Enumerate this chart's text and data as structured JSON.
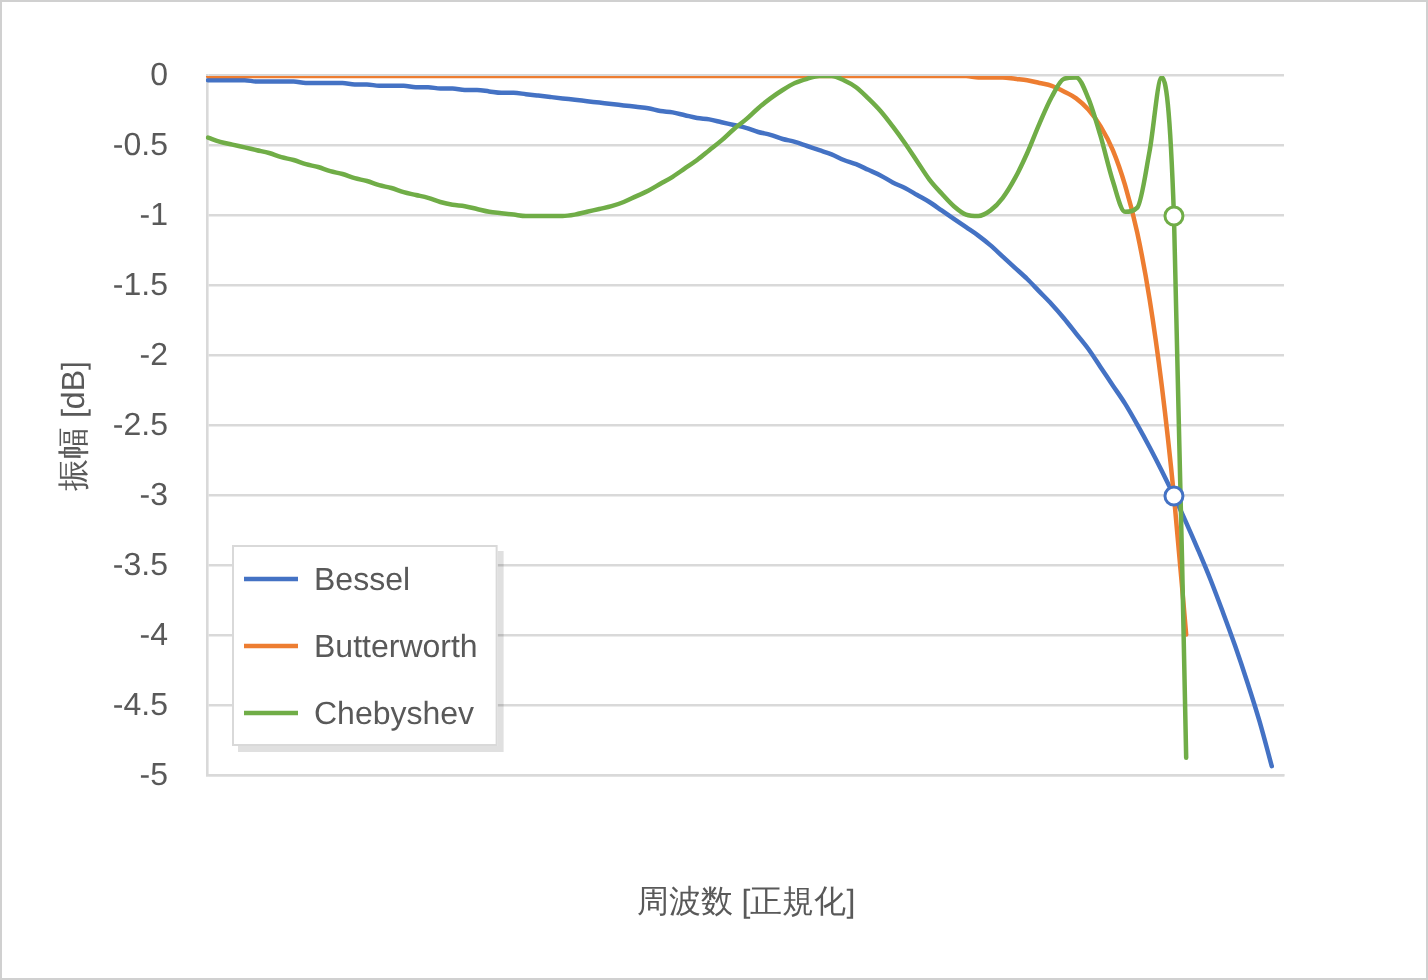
{
  "chart_data": {
    "type": "line",
    "xlabel": "周波数 [正規化]",
    "ylabel": "振幅 [dB]",
    "categories": [
      null,
      null,
      null,
      null,
      null,
      null,
      null,
      null,
      null,
      null,
      null,
      null,
      null,
      null,
      null,
      null,
      null,
      null,
      null,
      null,
      null,
      null,
      null,
      null,
      null,
      null,
      null,
      null,
      null,
      null,
      null,
      null,
      null,
      null,
      null,
      null,
      null,
      null,
      null,
      null,
      null,
      null,
      null,
      null,
      null,
      null,
      null,
      null,
      null,
      null,
      null,
      null,
      null,
      null,
      null,
      null,
      null,
      null,
      null,
      null,
      null,
      null,
      null,
      null,
      null,
      null,
      null,
      null,
      null,
      null,
      null,
      null,
      null,
      null,
      null,
      null,
      null,
      null,
      null,
      null,
      null,
      null,
      null,
      null,
      null,
      null,
      null,
      null,
      null
    ],
    "ylim": [
      -5,
      0
    ],
    "yticks": [
      -5,
      -4.5,
      -4,
      -3.5,
      -3,
      -2.5,
      -2,
      -1.5,
      -1,
      -0.5,
      0
    ],
    "tick_labels": "y",
    "grid": "y",
    "legend": "bottom left",
    "series": [
      {
        "name": "Bessel",
        "color": "#4472c4",
        "values": [
          -0.03,
          -0.03,
          -0.03,
          -0.03,
          -0.04,
          -0.04,
          -0.04,
          -0.04,
          -0.05,
          -0.05,
          -0.05,
          -0.05,
          -0.06,
          -0.06,
          -0.07,
          -0.07,
          -0.07,
          -0.08,
          -0.08,
          -0.09,
          -0.09,
          -0.1,
          -0.1,
          -0.11,
          -0.12,
          -0.12,
          -0.13,
          -0.14,
          -0.15,
          -0.16,
          -0.17,
          -0.18,
          -0.19,
          -0.2,
          -0.21,
          -0.22,
          -0.23,
          -0.25,
          -0.26,
          -0.28,
          -0.3,
          -0.31,
          -0.33,
          -0.35,
          -0.37,
          -0.4,
          -0.42,
          -0.45,
          -0.47,
          -0.5,
          -0.53,
          -0.56,
          -0.6,
          -0.63,
          -0.67,
          -0.71,
          -0.76,
          -0.8,
          -0.85,
          -0.9,
          -0.96,
          -1.02,
          -1.08,
          -1.14,
          -1.21,
          -1.29,
          -1.37,
          -1.45,
          -1.54,
          -1.63,
          -1.73,
          -1.84,
          -1.95,
          -2.08,
          -2.21,
          -2.34,
          -2.49,
          -2.65,
          -2.82,
          -3.0,
          -3.19,
          -3.39,
          -3.6,
          -3.83,
          -4.07,
          -4.33,
          -4.61,
          -4.93,
          null
        ]
      },
      {
        "name": "Butterworth",
        "color": "#ed7d31",
        "values": [
          0,
          0,
          0,
          0,
          0,
          0,
          0,
          0,
          0,
          0,
          0,
          0,
          0,
          0,
          0,
          0,
          0,
          0,
          0,
          0,
          0,
          0,
          0,
          0,
          0,
          0,
          0,
          0,
          0,
          0,
          0,
          0,
          0,
          0,
          0,
          0,
          0,
          0,
          0,
          0,
          0,
          0,
          0,
          0,
          0,
          0,
          0,
          0,
          0,
          0,
          0,
          0,
          0,
          0,
          0,
          0,
          0,
          0,
          0,
          0,
          0,
          0,
          0,
          -0.01,
          -0.01,
          -0.01,
          -0.02,
          -0.03,
          -0.05,
          -0.07,
          -0.11,
          -0.16,
          -0.24,
          -0.36,
          -0.53,
          -0.78,
          -1.12,
          -1.59,
          -2.21,
          -3.0,
          -3.99,
          null,
          null,
          null,
          null,
          null,
          null,
          null,
          null
        ]
      },
      {
        "name": "Chebyshev",
        "color": "#70ad47",
        "values": [
          -0.44,
          -0.47,
          -0.49,
          -0.51,
          -0.53,
          -0.55,
          -0.58,
          -0.6,
          -0.63,
          -0.65,
          -0.68,
          -0.7,
          -0.73,
          -0.75,
          -0.78,
          -0.8,
          -0.83,
          -0.85,
          -0.87,
          -0.9,
          -0.92,
          -0.93,
          -0.95,
          -0.97,
          -0.98,
          -0.99,
          -1.0,
          -1.0,
          -1.0,
          -1.0,
          -0.99,
          -0.97,
          -0.95,
          -0.93,
          -0.9,
          -0.86,
          -0.82,
          -0.77,
          -0.72,
          -0.66,
          -0.6,
          -0.53,
          -0.46,
          -0.38,
          -0.31,
          -0.23,
          -0.16,
          -0.1,
          -0.05,
          -0.02,
          0,
          0,
          -0.03,
          -0.08,
          -0.16,
          -0.25,
          -0.36,
          -0.48,
          -0.61,
          -0.74,
          -0.84,
          -0.93,
          -0.99,
          -1.0,
          -0.96,
          -0.87,
          -0.73,
          -0.55,
          -0.34,
          -0.15,
          -0.02,
          -0.01,
          -0.16,
          -0.43,
          -0.75,
          -0.97,
          -0.94,
          -0.54,
          -0.01,
          -1.0,
          -4.87,
          null,
          null,
          null,
          null,
          null,
          null,
          null,
          null
        ]
      },
      {
        "type": "scatter",
        "color": "#4472c4",
        "marker": "circle",
        "values": [
          null,
          null,
          null,
          null,
          null,
          null,
          null,
          null,
          null,
          null,
          null,
          null,
          null,
          null,
          null,
          null,
          null,
          null,
          null,
          null,
          null,
          null,
          null,
          null,
          null,
          null,
          null,
          null,
          null,
          null,
          null,
          null,
          null,
          null,
          null,
          null,
          null,
          null,
          null,
          null,
          null,
          null,
          null,
          null,
          null,
          null,
          null,
          null,
          null,
          null,
          null,
          null,
          null,
          null,
          null,
          null,
          null,
          null,
          null,
          null,
          null,
          null,
          null,
          null,
          null,
          null,
          null,
          null,
          null,
          null,
          null,
          null,
          null,
          null,
          null,
          null,
          null,
          null,
          null,
          -3,
          null,
          null,
          null,
          null,
          null,
          null,
          null,
          null,
          null
        ]
      },
      {
        "type": "scatter",
        "color": "#70ad47",
        "marker": "circle",
        "values": [
          null,
          null,
          null,
          null,
          null,
          null,
          null,
          null,
          null,
          null,
          null,
          null,
          null,
          null,
          null,
          null,
          null,
          null,
          null,
          null,
          null,
          null,
          null,
          null,
          null,
          null,
          null,
          null,
          null,
          null,
          null,
          null,
          null,
          null,
          null,
          null,
          null,
          null,
          null,
          null,
          null,
          null,
          null,
          null,
          null,
          null,
          null,
          null,
          null,
          null,
          null,
          null,
          null,
          null,
          null,
          null,
          null,
          null,
          null,
          null,
          null,
          null,
          null,
          null,
          null,
          null,
          null,
          null,
          null,
          null,
          null,
          null,
          null,
          null,
          null,
          null,
          null,
          null,
          null,
          -1,
          null,
          null,
          null,
          null,
          null,
          null,
          null,
          null,
          null
        ]
      }
    ]
  }
}
